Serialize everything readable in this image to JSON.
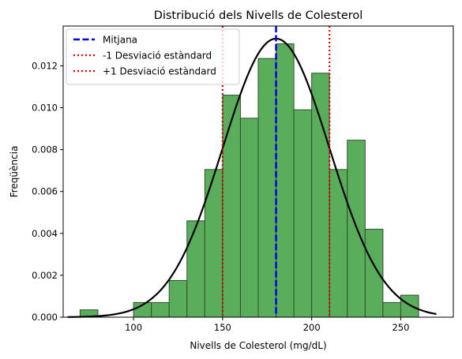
{
  "chart_data": {
    "type": "bar",
    "title": "Distribució dels Nivells de Colesterol",
    "xlabel": "Nivells de Colesterol (mg/dL)",
    "ylabel": "Freqüència",
    "xlim": [
      60.5,
      279.5
    ],
    "ylim": [
      0,
      0.0139
    ],
    "xticks": [
      100,
      150,
      200,
      250
    ],
    "yticks": [
      0.0,
      0.002,
      0.004,
      0.006,
      0.008,
      0.01,
      0.012
    ],
    "ytick_labels": [
      "0.000",
      "0.002",
      "0.004",
      "0.006",
      "0.008",
      "0.010",
      "0.012"
    ],
    "grid": false,
    "legend_position": "top-left",
    "histogram": {
      "bin_width": 10,
      "bin_edges": [
        70,
        80,
        90,
        100,
        110,
        120,
        130,
        140,
        150,
        160,
        170,
        180,
        190,
        200,
        210,
        220,
        230,
        240,
        250,
        260
      ],
      "values": [
        0.00035,
        0.0,
        0.0,
        0.0007,
        0.0007,
        0.00175,
        0.0046,
        0.00705,
        0.0106,
        0.0095,
        0.01235,
        0.01305,
        0.0099,
        0.01165,
        0.00705,
        0.00845,
        0.0042,
        0.0007,
        0.00105
      ],
      "color": "#5aad5a",
      "edge_color": "#2f4f2f"
    },
    "curve": {
      "kind": "normal-pdf",
      "mean": 180,
      "sd": 30,
      "x_range": [
        63,
        270
      ],
      "color": "#000000"
    },
    "vlines": [
      {
        "x": 180,
        "label": "Mitjana",
        "color": "#0000ee",
        "style": "dashed"
      },
      {
        "x": 150,
        "label": "-1 Desviació estàndard",
        "color": "#ee0000",
        "style": "dotted"
      },
      {
        "x": 210,
        "label": "+1 Desviació estàndard",
        "color": "#ee0000",
        "style": "dotted"
      }
    ]
  }
}
